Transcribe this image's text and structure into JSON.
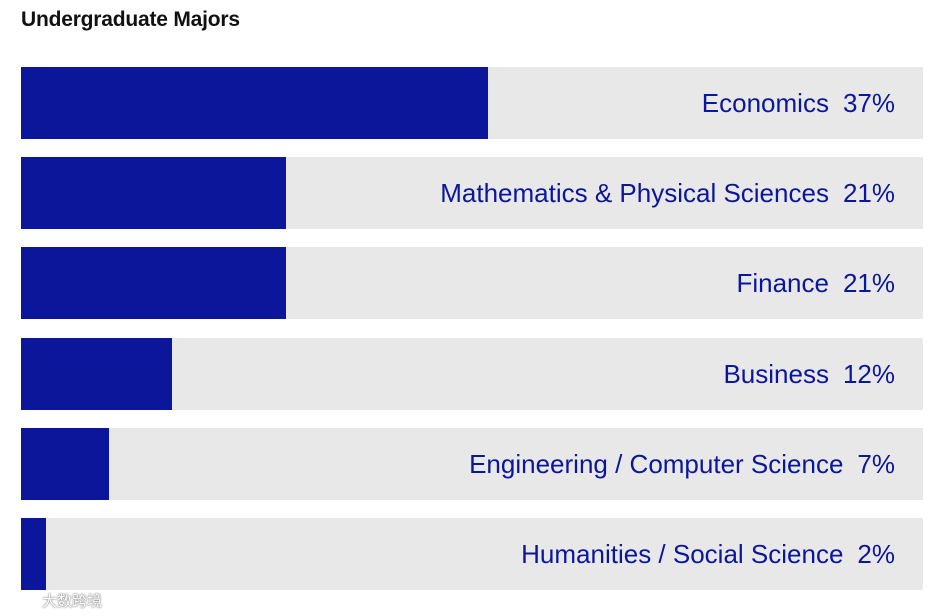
{
  "chart_data": {
    "type": "bar",
    "orientation": "horizontal",
    "title": "Undergraduate Majors",
    "categories": [
      "Economics",
      "Mathematics & Physical Sciences",
      "Finance",
      "Business",
      "Engineering / Computer Science",
      "Humanities / Social Science"
    ],
    "values": [
      37,
      21,
      21,
      12,
      7,
      2
    ],
    "value_labels": [
      "37%",
      "21%",
      "21%",
      "12%",
      "7%",
      "2%"
    ],
    "xlim": [
      0,
      71.5
    ],
    "grid": false,
    "legend": "none"
  },
  "colors": {
    "bar": "#0b169b",
    "track": "#e8e8e8",
    "label": "#0b169b",
    "title": "#111111"
  },
  "watermark": {
    "text": "大数跨境"
  }
}
